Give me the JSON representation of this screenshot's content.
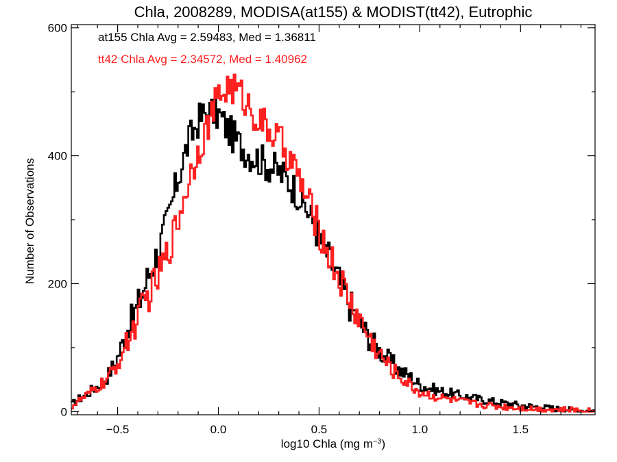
{
  "chart_data": {
    "type": "line",
    "title": "Chla, 2008289, MODISA(at155) & MODIST(tt42), Eutrophic",
    "xlabel_main": "log10 Chla (mg m",
    "xlabel_sup": "−3",
    "xlabel_close": ")",
    "ylabel": "Number of Observations",
    "xlim": [
      -0.73,
      1.87
    ],
    "ylim": [
      -5,
      605
    ],
    "x_ticks": [
      -0.5,
      0.0,
      0.5,
      1.0,
      1.5
    ],
    "x_tick_labels": [
      "−0.5",
      "0.0",
      "0.5",
      "1.0",
      "1.5"
    ],
    "y_ticks": [
      0,
      200,
      400,
      600
    ],
    "y_tick_labels": [
      "0",
      "200",
      "400",
      "600"
    ],
    "annotations": [
      {
        "text": "at155 Chla Avg = 2.59483, Med = 1.36811",
        "color": "#000000"
      },
      {
        "text": "tt42 Chla Avg = 2.34572, Med = 1.40962",
        "color": "#ff2020"
      }
    ],
    "series": [
      {
        "color": "#000000",
        "x": [
          -0.73,
          -0.7,
          -0.65,
          -0.6,
          -0.55,
          -0.5,
          -0.45,
          -0.4,
          -0.35,
          -0.3,
          -0.25,
          -0.2,
          -0.15,
          -0.1,
          -0.05,
          0.0,
          0.05,
          0.1,
          0.15,
          0.2,
          0.25,
          0.3,
          0.35,
          0.4,
          0.45,
          0.5,
          0.55,
          0.6,
          0.65,
          0.7,
          0.75,
          0.8,
          0.85,
          0.9,
          0.95,
          1.0,
          1.1,
          1.2,
          1.3,
          1.4,
          1.5,
          1.6,
          1.7,
          1.8,
          1.87
        ],
        "y": [
          10,
          18,
          28,
          40,
          55,
          85,
          130,
          165,
          210,
          250,
          300,
          365,
          420,
          455,
          470,
          465,
          440,
          420,
          405,
          395,
          385,
          375,
          360,
          340,
          310,
          275,
          240,
          205,
          170,
          140,
          115,
          95,
          80,
          65,
          55,
          42,
          32,
          25,
          19,
          14,
          10,
          7,
          4,
          2,
          1
        ]
      },
      {
        "color": "#ff2020",
        "x": [
          -0.73,
          -0.7,
          -0.65,
          -0.6,
          -0.55,
          -0.5,
          -0.45,
          -0.4,
          -0.35,
          -0.3,
          -0.25,
          -0.2,
          -0.15,
          -0.1,
          -0.05,
          0.0,
          0.05,
          0.1,
          0.15,
          0.2,
          0.25,
          0.3,
          0.35,
          0.4,
          0.45,
          0.5,
          0.55,
          0.6,
          0.65,
          0.7,
          0.75,
          0.8,
          0.85,
          0.9,
          0.95,
          1.0,
          1.1,
          1.2,
          1.3,
          1.4,
          1.5,
          1.6,
          1.7,
          1.8,
          1.87
        ],
        "y": [
          8,
          15,
          25,
          38,
          50,
          75,
          110,
          145,
          180,
          210,
          250,
          300,
          360,
          410,
          450,
          490,
          510,
          500,
          480,
          455,
          440,
          425,
          400,
          365,
          325,
          285,
          245,
          210,
          175,
          145,
          115,
          90,
          70,
          55,
          42,
          30,
          22,
          16,
          11,
          8,
          6,
          4,
          3,
          2,
          1
        ]
      }
    ],
    "noise_amplitude": 28,
    "bins": 300
  }
}
